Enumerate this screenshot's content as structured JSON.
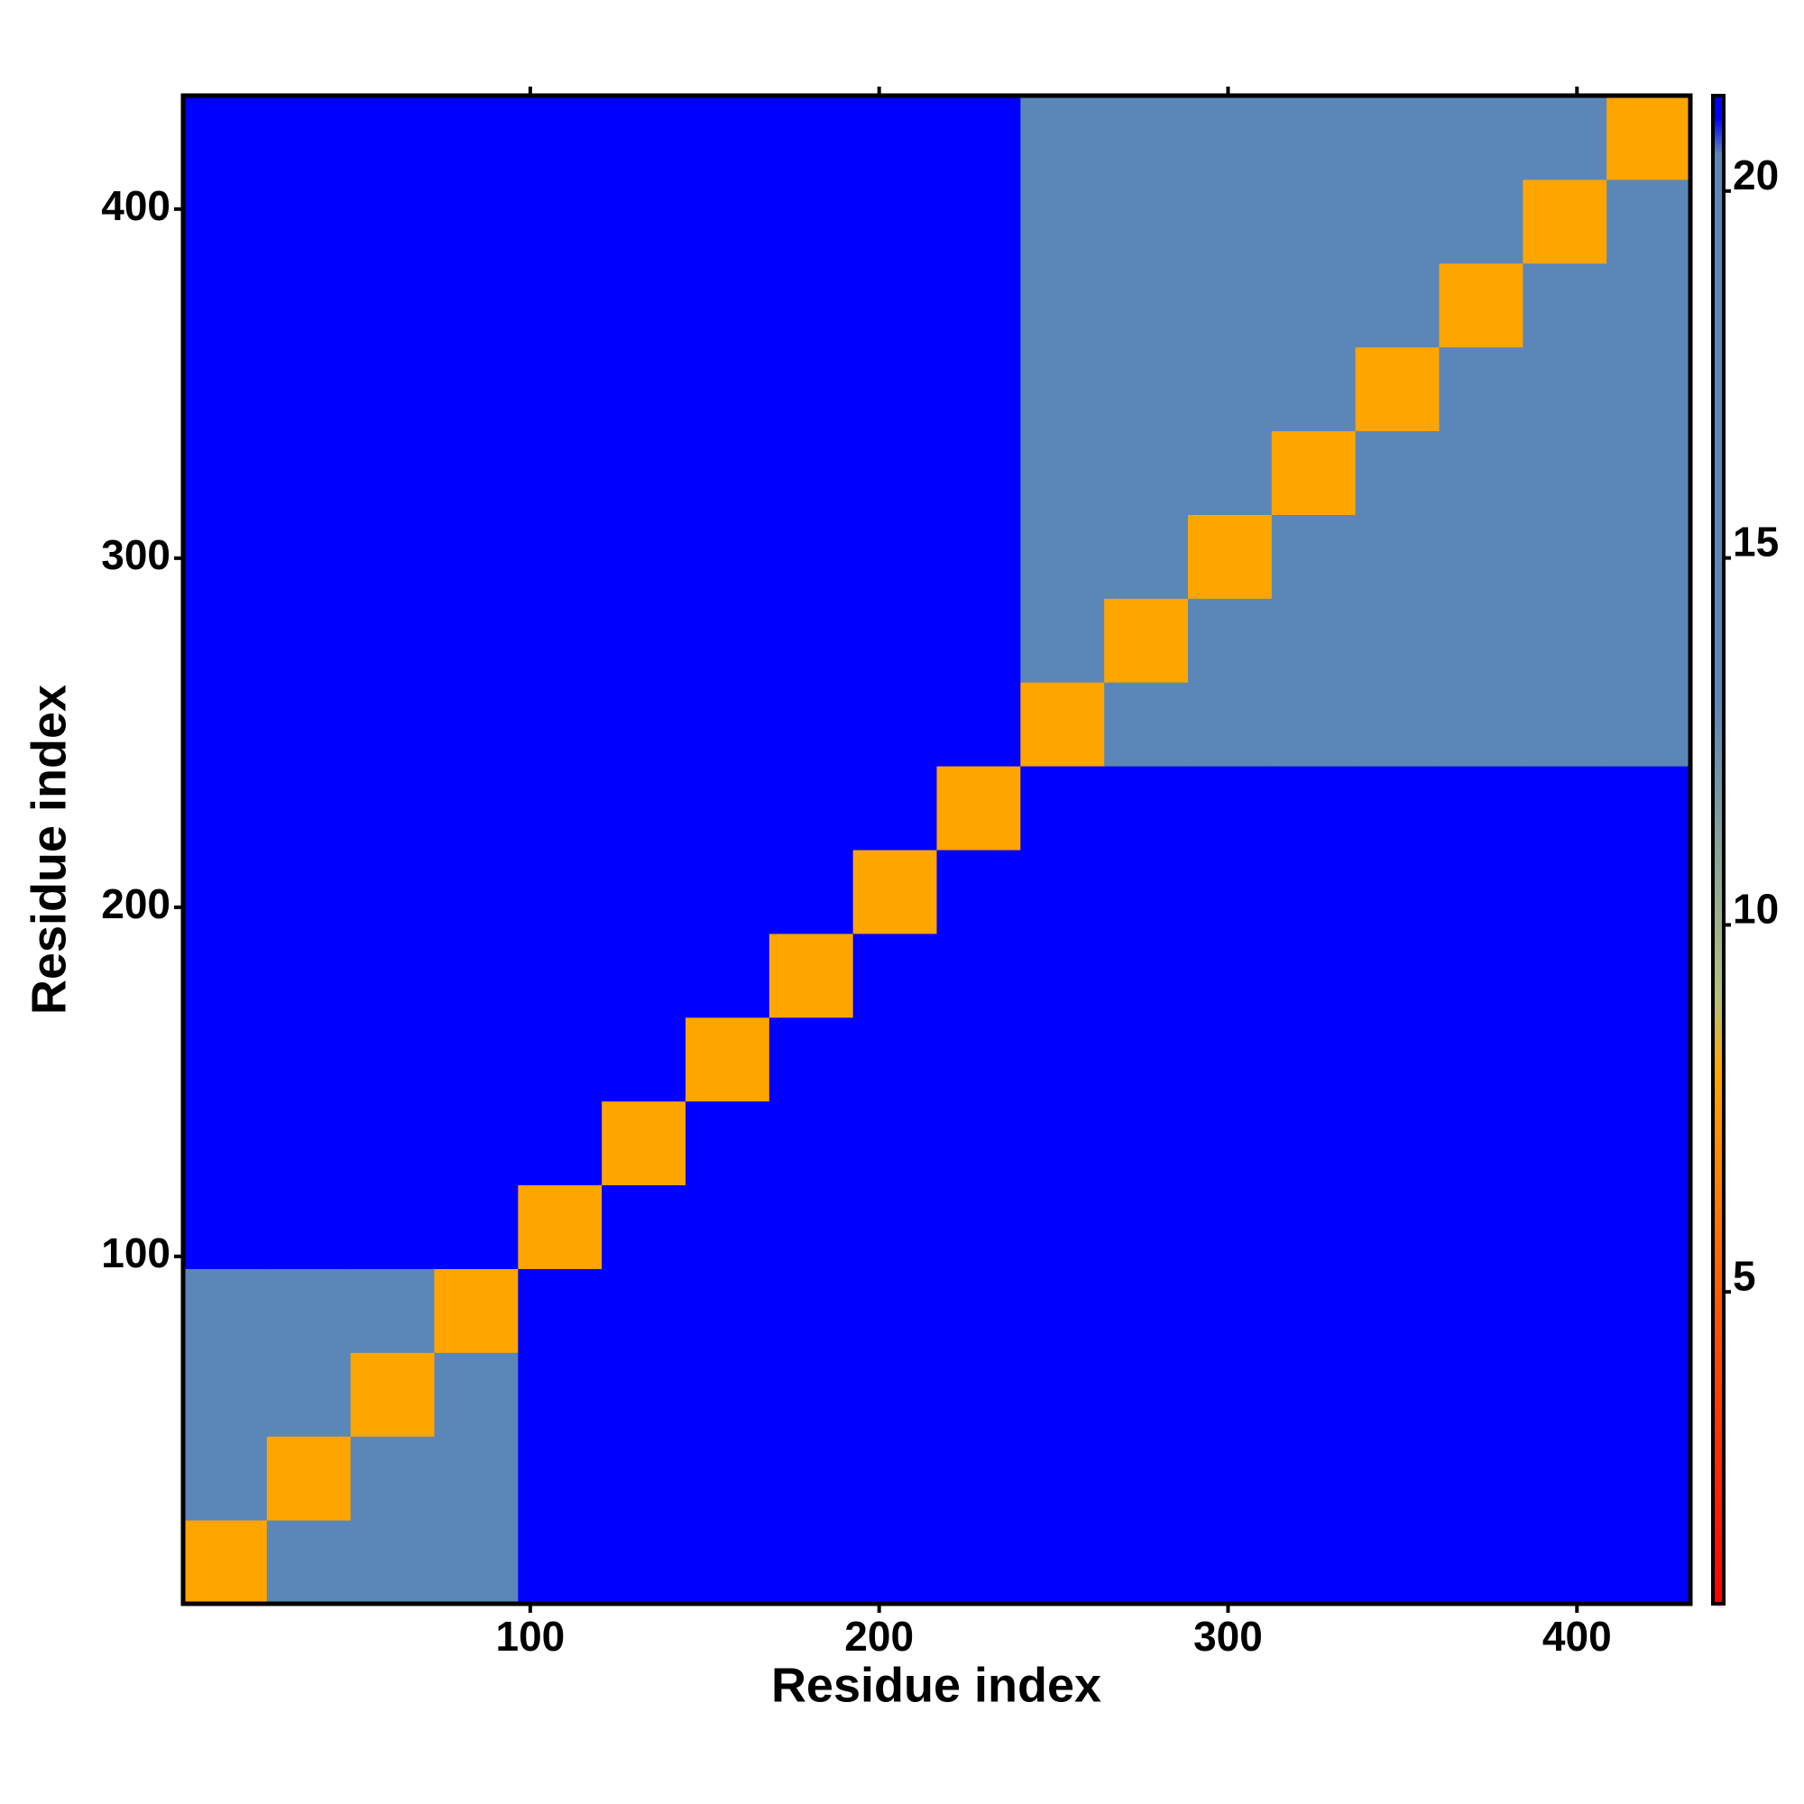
{
  "chart_data": {
    "type": "heatmap",
    "xlabel": "Residue index",
    "ylabel": "Residue index",
    "xlim": [
      0.5,
      432.5
    ],
    "ylim": [
      0.5,
      432.5
    ],
    "xticks": [
      100,
      200,
      300,
      400
    ],
    "yticks": [
      100,
      200,
      300,
      400
    ],
    "bins": [
      0.5,
      24.5,
      48.5,
      72.5,
      96.5,
      120.5,
      144.5,
      168.5,
      192.5,
      216.5,
      240.5,
      264.5,
      288.5,
      312.5,
      336.5,
      360.5,
      384.5,
      408.5,
      432.5
    ],
    "matrix": [
      [
        8,
        16,
        16,
        16,
        21,
        21,
        21,
        21,
        21,
        21,
        21,
        21,
        21,
        21,
        21,
        21,
        21,
        21
      ],
      [
        16,
        8,
        16,
        16,
        21,
        21,
        21,
        21,
        21,
        21,
        21,
        21,
        21,
        21,
        21,
        21,
        21,
        21
      ],
      [
        16,
        16,
        8,
        16,
        21,
        21,
        21,
        21,
        21,
        21,
        21,
        21,
        21,
        21,
        21,
        21,
        21,
        21
      ],
      [
        16,
        16,
        16,
        8,
        21,
        21,
        21,
        21,
        21,
        21,
        21,
        21,
        21,
        21,
        21,
        21,
        21,
        21
      ],
      [
        21,
        21,
        21,
        21,
        8,
        21,
        21,
        21,
        21,
        21,
        21,
        21,
        21,
        21,
        21,
        21,
        21,
        21
      ],
      [
        21,
        21,
        21,
        21,
        21,
        8,
        21,
        21,
        21,
        21,
        21,
        21,
        21,
        21,
        21,
        21,
        21,
        21
      ],
      [
        21,
        21,
        21,
        21,
        21,
        21,
        8,
        21,
        21,
        21,
        21,
        21,
        21,
        21,
        21,
        21,
        21,
        21
      ],
      [
        21,
        21,
        21,
        21,
        21,
        21,
        21,
        8,
        21,
        21,
        21,
        21,
        21,
        21,
        21,
        21,
        21,
        21
      ],
      [
        21,
        21,
        21,
        21,
        21,
        21,
        21,
        21,
        8,
        21,
        21,
        21,
        21,
        21,
        21,
        21,
        21,
        21
      ],
      [
        21,
        21,
        21,
        21,
        21,
        21,
        21,
        21,
        21,
        8,
        21,
        21,
        21,
        21,
        21,
        21,
        21,
        21
      ],
      [
        21,
        21,
        21,
        21,
        21,
        21,
        21,
        21,
        21,
        21,
        8,
        19,
        19,
        19,
        19,
        19,
        19,
        19
      ],
      [
        21,
        21,
        21,
        21,
        21,
        21,
        21,
        21,
        21,
        21,
        19,
        8,
        16,
        16,
        16,
        16,
        16,
        16
      ],
      [
        21,
        21,
        21,
        21,
        21,
        21,
        21,
        21,
        21,
        21,
        19,
        16,
        8,
        16,
        16,
        16,
        16,
        16
      ],
      [
        21,
        21,
        21,
        21,
        21,
        21,
        21,
        21,
        21,
        21,
        19,
        16,
        16,
        8,
        16,
        16,
        16,
        16
      ],
      [
        21,
        21,
        21,
        21,
        21,
        21,
        21,
        21,
        21,
        21,
        19,
        16,
        16,
        16,
        8,
        16,
        16,
        16
      ],
      [
        21,
        21,
        21,
        21,
        21,
        21,
        21,
        21,
        21,
        21,
        19,
        16,
        16,
        16,
        16,
        8,
        16,
        16
      ],
      [
        21,
        21,
        21,
        21,
        21,
        21,
        21,
        21,
        21,
        21,
        19,
        16,
        16,
        16,
        16,
        16,
        8,
        16
      ],
      [
        21,
        21,
        21,
        21,
        21,
        21,
        21,
        21,
        21,
        21,
        19,
        16,
        16,
        16,
        16,
        16,
        16,
        8
      ]
    ],
    "colorlim": [
      0.75,
      21.3
    ],
    "colorticks": [
      5,
      10,
      15,
      20
    ],
    "colorscale": [
      [
        0.75,
        "#ff0000"
      ],
      [
        5,
        "#ff5a00"
      ],
      [
        8,
        "#ffa500"
      ],
      [
        9,
        "#b4c07a"
      ],
      [
        13,
        "#5b87b8"
      ],
      [
        20.5,
        "#5b87b8"
      ],
      [
        21,
        "#0000ff"
      ],
      [
        21.3,
        "#0000ff"
      ]
    ]
  }
}
